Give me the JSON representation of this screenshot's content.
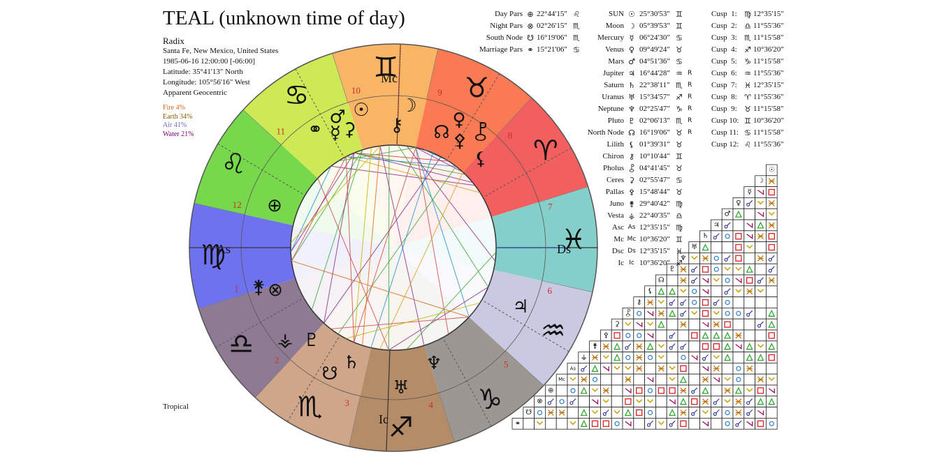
{
  "title": "TEAL (unknown time of day)",
  "chart_info": {
    "type": "Radix",
    "place": "Santa Fe, New Mexico, United States",
    "datetime": "1985-06-16 12:00:00 [-06:00]",
    "latitude": "Latitude: 35°41'13\" North",
    "longitude": "Longitude: 105°56'16\" West",
    "mode": "Apparent Geocentric"
  },
  "elements": [
    {
      "label": "Fire 4%",
      "color": "#d2691e"
    },
    {
      "label": "Earth 34%",
      "color": "#8b5a00"
    },
    {
      "label": "Air 41%",
      "color": "#6a6acd"
    },
    {
      "label": "Water 21%",
      "color": "#800080"
    }
  ],
  "zodiac_type": "Tropical",
  "parts": [
    {
      "name": "Day Pars",
      "glyph": "⊕",
      "pos": "22°44'15\"",
      "sign": "♌"
    },
    {
      "name": "Night Pars",
      "glyph": "⊗",
      "pos": "02°26'15\"",
      "sign": "♏"
    },
    {
      "name": "South Node",
      "glyph": "☋",
      "pos": "16°19'06\"",
      "sign": "♏"
    },
    {
      "name": "Marriage Pars",
      "glyph": "⚭",
      "pos": "15°21'06\"",
      "sign": "♋"
    }
  ],
  "planets": [
    {
      "name": "SUN",
      "glyph": "☉",
      "pos": "25°30'53\"",
      "sign": "♊",
      "r": ""
    },
    {
      "name": "Moon",
      "glyph": "☽",
      "pos": "05°39'53\"",
      "sign": "♊",
      "r": ""
    },
    {
      "name": "Mercury",
      "glyph": "☿",
      "pos": "06°24'30\"",
      "sign": "♋",
      "r": ""
    },
    {
      "name": "Venus",
      "glyph": "♀",
      "pos": "09°49'24\"",
      "sign": "♉",
      "r": ""
    },
    {
      "name": "Mars",
      "glyph": "♂",
      "pos": "04°51'36\"",
      "sign": "♋",
      "r": ""
    },
    {
      "name": "Jupiter",
      "glyph": "♃",
      "pos": "16°44'28\"",
      "sign": "♒",
      "r": "R"
    },
    {
      "name": "Saturn",
      "glyph": "♄",
      "pos": "22°38'11\"",
      "sign": "♏",
      "r": "R"
    },
    {
      "name": "Uranus",
      "glyph": "♅",
      "pos": "15°34'57\"",
      "sign": "♐",
      "r": "R"
    },
    {
      "name": "Neptune",
      "glyph": "♆",
      "pos": "02°25'47\"",
      "sign": "♑",
      "r": "R"
    },
    {
      "name": "Pluto",
      "glyph": "♇",
      "pos": "02°06'13\"",
      "sign": "♏",
      "r": "R"
    },
    {
      "name": "North Node",
      "glyph": "☊",
      "pos": "16°19'06\"",
      "sign": "♉",
      "r": "R"
    },
    {
      "name": "Lilith",
      "glyph": "⚸",
      "pos": "01°39'31\"",
      "sign": "♉",
      "r": ""
    },
    {
      "name": "Chiron",
      "glyph": "⚷",
      "pos": "10°10'44\"",
      "sign": "♊",
      "r": ""
    },
    {
      "name": "Pholus",
      "glyph": "⯛",
      "pos": "04°41'45\"",
      "sign": "♉",
      "r": ""
    },
    {
      "name": "Ceres",
      "glyph": "⚳",
      "pos": "02°55'47\"",
      "sign": "♋",
      "r": ""
    },
    {
      "name": "Pallas",
      "glyph": "⚴",
      "pos": "15°48'44\"",
      "sign": "♉",
      "r": ""
    },
    {
      "name": "Juno",
      "glyph": "⚵",
      "pos": "29°40'42\"",
      "sign": "♍",
      "r": ""
    },
    {
      "name": "Vesta",
      "glyph": "⚶",
      "pos": "22°40'35\"",
      "sign": "♎",
      "r": ""
    },
    {
      "name": "Asc",
      "glyph": "As",
      "pos": "12°35'15\"",
      "sign": "♍",
      "r": ""
    },
    {
      "name": "Mc",
      "glyph": "Mc",
      "pos": "10°36'20\"",
      "sign": "♊",
      "r": ""
    },
    {
      "name": "Dsc",
      "glyph": "Ds",
      "pos": "12°35'15\"",
      "sign": "♓",
      "r": ""
    },
    {
      "name": "Ic",
      "glyph": "Ic",
      "pos": "10°36'20\"",
      "sign": "♐",
      "r": ""
    }
  ],
  "cusps": [
    {
      "label": "Cusp  1:",
      "sign": "♍",
      "pos": "12°35'15\""
    },
    {
      "label": "Cusp  2:",
      "sign": "♎",
      "pos": "11°55'36\""
    },
    {
      "label": "Cusp  3:",
      "sign": "♏",
      "pos": "11°15'58\""
    },
    {
      "label": "Cusp  4:",
      "sign": "♐",
      "pos": "10°36'20\""
    },
    {
      "label": "Cusp  5:",
      "sign": "♑",
      "pos": "11°15'58\""
    },
    {
      "label": "Cusp  6:",
      "sign": "♒",
      "pos": "11°55'36\""
    },
    {
      "label": "Cusp  7:",
      "sign": "♓",
      "pos": "12°35'15\""
    },
    {
      "label": "Cusp  8:",
      "sign": "♈",
      "pos": "11°55'36\""
    },
    {
      "label": "Cusp  9:",
      "sign": "♉",
      "pos": "11°15'58\""
    },
    {
      "label": "Cusp 10:",
      "sign": "♊",
      "pos": "10°36'20\""
    },
    {
      "label": "Cusp 11:",
      "sign": "♋",
      "pos": "11°15'58\""
    },
    {
      "label": "Cusp 12:",
      "sign": "♌",
      "pos": "11°55'36\""
    }
  ],
  "wheel": {
    "signs": [
      {
        "glyph": "♋",
        "color": "#cdea56"
      },
      {
        "glyph": "♊",
        "color": "#f8b566"
      },
      {
        "glyph": "♉",
        "color": "#fa7a53"
      },
      {
        "glyph": "♈",
        "color": "#f25f5f"
      },
      {
        "glyph": "♓",
        "color": "#85cfcb"
      },
      {
        "glyph": "♒",
        "color": "#c9c9e2"
      },
      {
        "glyph": "♑",
        "color": "#9c9792"
      },
      {
        "glyph": "♐",
        "color": "#b48c68"
      },
      {
        "glyph": "♏",
        "color": "#d0a68a"
      },
      {
        "glyph": "♎",
        "color": "#8f7a93"
      },
      {
        "glyph": "♍",
        "color": "#6f72ef"
      },
      {
        "glyph": "♌",
        "color": "#76d84a"
      }
    ],
    "house_numbers": [
      "1",
      "2",
      "3",
      "4",
      "5",
      "6",
      "7",
      "8",
      "9",
      "10",
      "11",
      "12"
    ],
    "angles": {
      "asc": "As",
      "mc": "Mc",
      "dsc": "Ds",
      "ic": "Ic"
    }
  },
  "aspect_grid": {
    "header_glyphs": [
      "☉",
      "☽",
      "☿",
      "♀",
      "♂",
      "♃",
      "♄",
      "♅",
      "♆",
      "♇",
      "☊",
      "⚸",
      "⚷",
      "⯛",
      "⚳",
      "⚴",
      "⚵",
      "⚶",
      "As",
      "Mc",
      "⊕",
      "⊗",
      "☋",
      "⚭"
    ]
  }
}
